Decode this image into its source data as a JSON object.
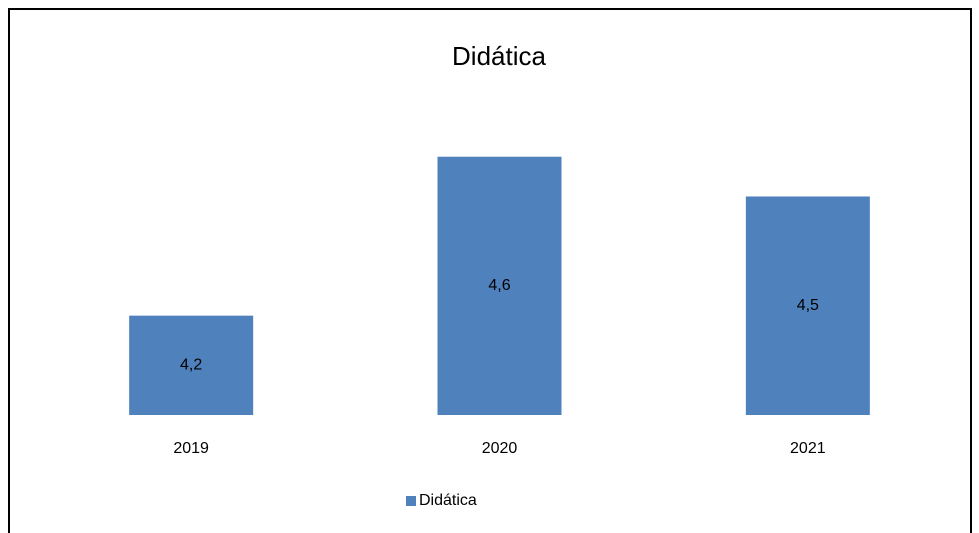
{
  "chart_data": {
    "type": "bar",
    "title": "Didática",
    "categories": [
      "2019",
      "2020",
      "2021"
    ],
    "series": [
      {
        "name": "Didática",
        "color": "#4f81bd",
        "values": [
          4.2,
          4.6,
          4.5
        ],
        "value_labels": [
          "4,2",
          "4,6",
          "4,5"
        ]
      }
    ],
    "ylim": [
      3.95,
      4.7
    ],
    "legend": "bottom"
  }
}
